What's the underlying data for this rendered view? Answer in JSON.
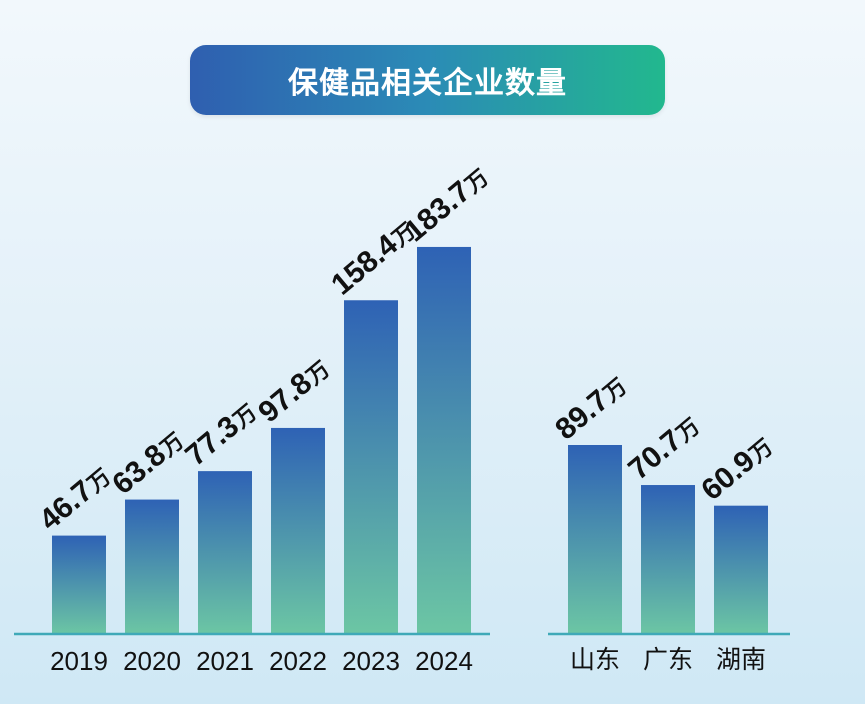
{
  "title": "保健品相关企业数量",
  "colors": {
    "bar_top": "#2e62b5",
    "bar_bottom": "#6cc6a4",
    "baseline": "#3fa9b8",
    "banner_left": "#2f5fb0",
    "banner_right": "#22b88e"
  },
  "chart_data": [
    {
      "type": "bar",
      "title": "保健品相关企业数量",
      "categories": [
        "2019",
        "2020",
        "2021",
        "2022",
        "2023",
        "2024"
      ],
      "values": [
        46.7,
        63.8,
        77.3,
        97.8,
        158.4,
        183.7
      ],
      "labels": [
        "46.7",
        "63.8",
        "77.3",
        "97.8",
        "158.4",
        "183.7"
      ],
      "unit": "万",
      "xlabel": "",
      "ylabel": "",
      "ylim": [
        0,
        200
      ],
      "grid": false,
      "legend": "none"
    },
    {
      "type": "bar",
      "categories": [
        "山东",
        "广东",
        "湖南"
      ],
      "values": [
        89.7,
        70.7,
        60.9
      ],
      "labels": [
        "89.7",
        "70.7",
        "60.9"
      ],
      "unit": "万",
      "xlabel": "",
      "ylabel": "",
      "ylim": [
        0,
        200
      ],
      "grid": false,
      "legend": "none"
    }
  ]
}
